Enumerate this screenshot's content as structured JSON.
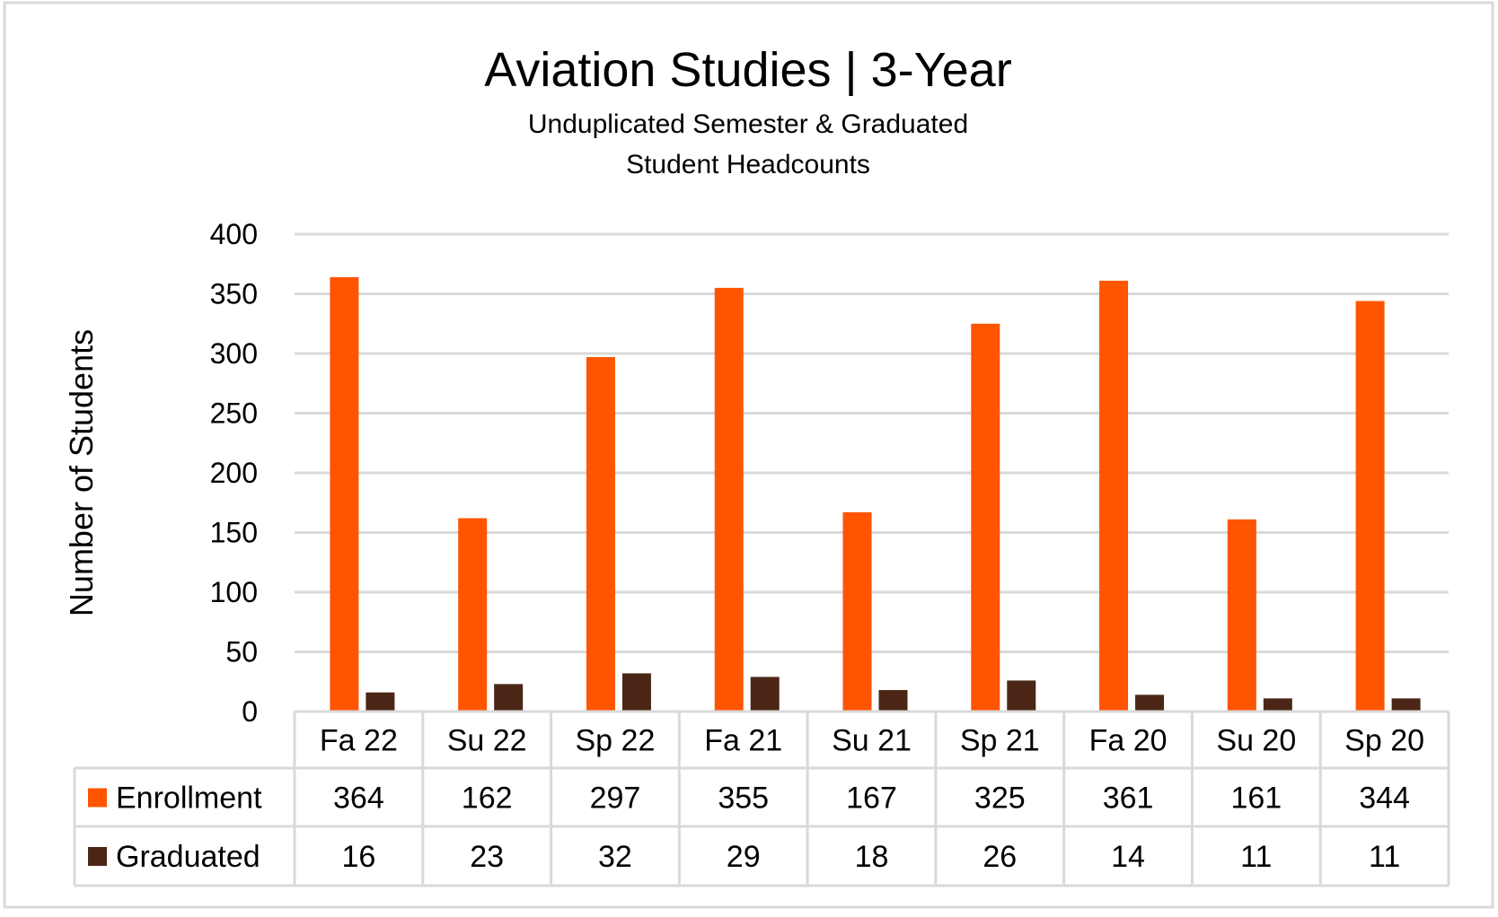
{
  "chart_data": {
    "type": "bar",
    "title": "Aviation Studies | 3-Year",
    "subtitle": [
      "Unduplicated Semester & Graduated",
      "Student Headcounts"
    ],
    "xlabel": "",
    "ylabel": "Number of Students",
    "ylim": [
      0,
      400
    ],
    "yticks": [
      0,
      50,
      100,
      150,
      200,
      250,
      300,
      350,
      400
    ],
    "grid": true,
    "legend": "data-table-left",
    "categories": [
      "Fa 22",
      "Su 22",
      "Sp 22",
      "Fa 21",
      "Su 21",
      "Sp 21",
      "Fa 20",
      "Su 20",
      "Sp 20"
    ],
    "series": [
      {
        "name": "Enrollment",
        "color": "#FF5500",
        "values": [
          364,
          162,
          297,
          355,
          167,
          325,
          361,
          161,
          344
        ]
      },
      {
        "name": "Graduated",
        "color": "#4B2617",
        "values": [
          16,
          23,
          32,
          29,
          18,
          26,
          14,
          11,
          11
        ]
      }
    ]
  }
}
